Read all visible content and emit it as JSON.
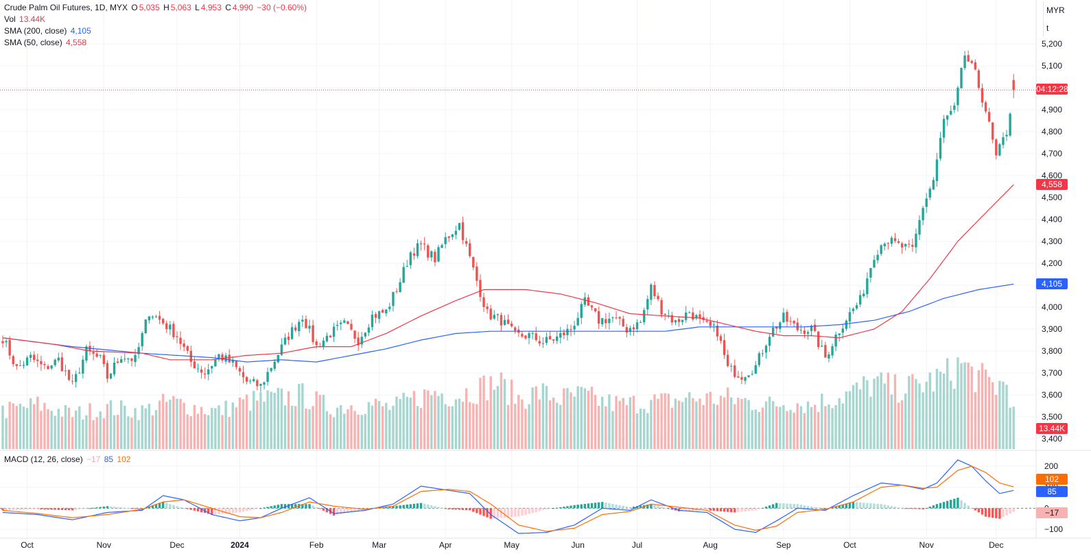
{
  "header": {
    "symbol": "Crude Palm Oil Futures, 1D, MYX",
    "open_label": "O",
    "open": "5,035",
    "high_label": "H",
    "high": "5,063",
    "low_label": "L",
    "low": "4,953",
    "close_label": "C",
    "close": "4,990",
    "change": "−30 (−0.60%)"
  },
  "volume_legend": {
    "label": "Vol",
    "value": "13.44K"
  },
  "sma200_legend": {
    "label": "SMA (200, close)",
    "value": "4,105"
  },
  "sma50_legend": {
    "label": "SMA (50, close)",
    "value": "4,558"
  },
  "macd_legend": {
    "label": "MACD (12, 26, close)",
    "hist": "−17",
    "macd": "85",
    "signal": "102"
  },
  "currency": {
    "code": "MYR",
    "unit": "t"
  },
  "price_tags": {
    "countdown": "04:12:28",
    "sma50": "4,558",
    "sma200": "4,105",
    "volume": "13.44K",
    "macd_signal": "102",
    "macd": "85",
    "hist": "−17"
  },
  "colors": {
    "up": "#26a69a",
    "down": "#ef5350",
    "vol_up": "#a7d6d1",
    "vol_down": "#f7b3b1",
    "sma200": "#2962ff",
    "sma50": "#f23645",
    "macd": "#2962ff",
    "signal": "#ff6d00",
    "grid": "#f0f3fa"
  },
  "chart_data": {
    "type": "candlestick",
    "y_ticks": [
      "5,200",
      "5,100",
      "5,000",
      "4,900",
      "4,800",
      "4,700",
      "4,600",
      "4,500",
      "4,400",
      "4,300",
      "4,200",
      "4,100",
      "4,000",
      "3,900",
      "3,800",
      "3,700",
      "3,600",
      "3,500",
      "3,400"
    ],
    "y_tick_values": [
      5200,
      5100,
      5000,
      4900,
      4800,
      4700,
      4600,
      4500,
      4400,
      4300,
      4200,
      4100,
      4000,
      3900,
      3800,
      3700,
      3600,
      3500,
      3400
    ],
    "x_labels": [
      "Oct",
      "Nov",
      "Dec",
      "2024",
      "Feb",
      "Mar",
      "Apr",
      "May",
      "Jun",
      "Jul",
      "Aug",
      "Sep",
      "Oct",
      "Nov",
      "Dec"
    ],
    "x_label_index": [
      7,
      29,
      50,
      68,
      90,
      108,
      127,
      146,
      165,
      182,
      203,
      224,
      243,
      265,
      285
    ],
    "macd_ticks": [
      "200",
      "100",
      "0",
      "−100"
    ],
    "macd_tick_values": [
      200,
      100,
      0,
      -100
    ],
    "price_keypoints": [
      [
        0,
        3860
      ],
      [
        4,
        3720
      ],
      [
        8,
        3770
      ],
      [
        12,
        3720
      ],
      [
        16,
        3760
      ],
      [
        20,
        3640
      ],
      [
        24,
        3800
      ],
      [
        28,
        3760
      ],
      [
        30,
        3680
      ],
      [
        34,
        3780
      ],
      [
        38,
        3760
      ],
      [
        42,
        3980
      ],
      [
        46,
        3930
      ],
      [
        50,
        3870
      ],
      [
        54,
        3750
      ],
      [
        58,
        3700
      ],
      [
        62,
        3780
      ],
      [
        66,
        3740
      ],
      [
        70,
        3660
      ],
      [
        74,
        3640
      ],
      [
        78,
        3760
      ],
      [
        82,
        3870
      ],
      [
        86,
        3960
      ],
      [
        90,
        3820
      ],
      [
        94,
        3880
      ],
      [
        98,
        3920
      ],
      [
        102,
        3850
      ],
      [
        106,
        3960
      ],
      [
        110,
        3980
      ],
      [
        114,
        4120
      ],
      [
        117,
        4250
      ],
      [
        120,
        4280
      ],
      [
        124,
        4220
      ],
      [
        127,
        4310
      ],
      [
        131,
        4380
      ],
      [
        135,
        4170
      ],
      [
        139,
        3970
      ],
      [
        143,
        3940
      ],
      [
        147,
        3870
      ],
      [
        151,
        3870
      ],
      [
        155,
        3840
      ],
      [
        159,
        3860
      ],
      [
        163,
        3900
      ],
      [
        167,
        4020
      ],
      [
        171,
        3940
      ],
      [
        175,
        3950
      ],
      [
        179,
        3900
      ],
      [
        183,
        3930
      ],
      [
        186,
        4090
      ],
      [
        189,
        3990
      ],
      [
        193,
        3930
      ],
      [
        197,
        3980
      ],
      [
        201,
        3920
      ],
      [
        205,
        3890
      ],
      [
        208,
        3720
      ],
      [
        212,
        3690
      ],
      [
        216,
        3730
      ],
      [
        220,
        3880
      ],
      [
        224,
        3950
      ],
      [
        228,
        3900
      ],
      [
        232,
        3900
      ],
      [
        236,
        3770
      ],
      [
        239,
        3870
      ],
      [
        242,
        3950
      ],
      [
        246,
        4030
      ],
      [
        250,
        4240
      ],
      [
        253,
        4310
      ],
      [
        257,
        4280
      ],
      [
        261,
        4260
      ],
      [
        264,
        4460
      ],
      [
        267,
        4580
      ],
      [
        270,
        4850
      ],
      [
        273,
        4900
      ],
      [
        276,
        5150
      ],
      [
        279,
        5060
      ],
      [
        282,
        4900
      ],
      [
        285,
        4680
      ],
      [
        288,
        4800
      ],
      [
        290,
        4990
      ]
    ],
    "sma50_keypoints": [
      [
        0,
        3860
      ],
      [
        15,
        3830
      ],
      [
        25,
        3800
      ],
      [
        40,
        3790
      ],
      [
        48,
        3760
      ],
      [
        60,
        3760
      ],
      [
        70,
        3780
      ],
      [
        80,
        3790
      ],
      [
        90,
        3820
      ],
      [
        100,
        3820
      ],
      [
        110,
        3880
      ],
      [
        120,
        3960
      ],
      [
        130,
        4030
      ],
      [
        138,
        4080
      ],
      [
        150,
        4080
      ],
      [
        160,
        4060
      ],
      [
        170,
        4020
      ],
      [
        180,
        3970
      ],
      [
        190,
        3960
      ],
      [
        200,
        3950
      ],
      [
        208,
        3920
      ],
      [
        216,
        3890
      ],
      [
        224,
        3870
      ],
      [
        232,
        3870
      ],
      [
        240,
        3860
      ],
      [
        250,
        3900
      ],
      [
        258,
        3980
      ],
      [
        266,
        4130
      ],
      [
        274,
        4300
      ],
      [
        282,
        4430
      ],
      [
        290,
        4558
      ]
    ],
    "sma200_keypoints": [
      [
        0,
        3860
      ],
      [
        20,
        3820
      ],
      [
        40,
        3790
      ],
      [
        60,
        3770
      ],
      [
        70,
        3750
      ],
      [
        80,
        3760
      ],
      [
        90,
        3750
      ],
      [
        100,
        3780
      ],
      [
        110,
        3810
      ],
      [
        120,
        3850
      ],
      [
        130,
        3880
      ],
      [
        140,
        3890
      ],
      [
        150,
        3890
      ],
      [
        160,
        3890
      ],
      [
        170,
        3890
      ],
      [
        180,
        3890
      ],
      [
        190,
        3890
      ],
      [
        200,
        3910
      ],
      [
        210,
        3910
      ],
      [
        220,
        3910
      ],
      [
        230,
        3910
      ],
      [
        240,
        3920
      ],
      [
        250,
        3940
      ],
      [
        260,
        3980
      ],
      [
        270,
        4040
      ],
      [
        280,
        4080
      ],
      [
        290,
        4105
      ]
    ],
    "macd_keypoints": [
      [
        0,
        -20
      ],
      [
        10,
        -30
      ],
      [
        20,
        -55
      ],
      [
        30,
        -20
      ],
      [
        40,
        -10
      ],
      [
        46,
        60
      ],
      [
        52,
        40
      ],
      [
        60,
        -30
      ],
      [
        68,
        -60
      ],
      [
        74,
        -45
      ],
      [
        80,
        0
      ],
      [
        88,
        50
      ],
      [
        95,
        -25
      ],
      [
        104,
        -10
      ],
      [
        112,
        20
      ],
      [
        120,
        105
      ],
      [
        128,
        85
      ],
      [
        134,
        70
      ],
      [
        140,
        -30
      ],
      [
        148,
        -120
      ],
      [
        156,
        -115
      ],
      [
        164,
        -80
      ],
      [
        172,
        0
      ],
      [
        180,
        -10
      ],
      [
        186,
        40
      ],
      [
        194,
        -10
      ],
      [
        202,
        -20
      ],
      [
        210,
        -100
      ],
      [
        216,
        -115
      ],
      [
        222,
        -60
      ],
      [
        228,
        0
      ],
      [
        236,
        -10
      ],
      [
        244,
        60
      ],
      [
        252,
        120
      ],
      [
        258,
        110
      ],
      [
        264,
        90
      ],
      [
        268,
        120
      ],
      [
        274,
        230
      ],
      [
        278,
        200
      ],
      [
        282,
        130
      ],
      [
        286,
        70
      ],
      [
        290,
        85
      ]
    ],
    "signal_keypoints": [
      [
        0,
        -10
      ],
      [
        10,
        -25
      ],
      [
        20,
        -45
      ],
      [
        30,
        -30
      ],
      [
        40,
        -5
      ],
      [
        46,
        30
      ],
      [
        52,
        40
      ],
      [
        60,
        0
      ],
      [
        68,
        -40
      ],
      [
        74,
        -45
      ],
      [
        80,
        -20
      ],
      [
        88,
        30
      ],
      [
        95,
        10
      ],
      [
        104,
        -5
      ],
      [
        112,
        10
      ],
      [
        120,
        80
      ],
      [
        128,
        90
      ],
      [
        134,
        80
      ],
      [
        140,
        20
      ],
      [
        148,
        -80
      ],
      [
        156,
        -110
      ],
      [
        164,
        -95
      ],
      [
        172,
        -30
      ],
      [
        180,
        -15
      ],
      [
        186,
        20
      ],
      [
        194,
        5
      ],
      [
        202,
        -10
      ],
      [
        210,
        -80
      ],
      [
        216,
        -105
      ],
      [
        222,
        -85
      ],
      [
        228,
        -20
      ],
      [
        236,
        -5
      ],
      [
        244,
        30
      ],
      [
        252,
        100
      ],
      [
        258,
        110
      ],
      [
        264,
        95
      ],
      [
        268,
        100
      ],
      [
        274,
        180
      ],
      [
        278,
        200
      ],
      [
        282,
        170
      ],
      [
        286,
        120
      ],
      [
        290,
        102
      ]
    ],
    "volume_keypoints": [
      [
        0,
        12
      ],
      [
        10,
        14
      ],
      [
        20,
        11
      ],
      [
        30,
        13
      ],
      [
        40,
        12
      ],
      [
        48,
        15
      ],
      [
        56,
        13
      ],
      [
        62,
        12
      ],
      [
        70,
        15
      ],
      [
        78,
        16
      ],
      [
        86,
        17
      ],
      [
        94,
        13
      ],
      [
        100,
        14
      ],
      [
        106,
        14
      ],
      [
        112,
        13
      ],
      [
        118,
        16
      ],
      [
        124,
        18
      ],
      [
        130,
        17
      ],
      [
        136,
        19
      ],
      [
        142,
        21
      ],
      [
        148,
        16
      ],
      [
        154,
        18
      ],
      [
        160,
        16
      ],
      [
        166,
        17
      ],
      [
        172,
        15
      ],
      [
        178,
        14
      ],
      [
        184,
        15
      ],
      [
        190,
        15
      ],
      [
        196,
        16
      ],
      [
        202,
        16
      ],
      [
        208,
        16
      ],
      [
        214,
        15
      ],
      [
        220,
        14
      ],
      [
        226,
        15
      ],
      [
        232,
        14
      ],
      [
        238,
        16
      ],
      [
        244,
        18
      ],
      [
        250,
        21
      ],
      [
        256,
        19
      ],
      [
        262,
        20
      ],
      [
        268,
        22
      ],
      [
        272,
        24
      ],
      [
        275,
        27
      ],
      [
        278,
        24
      ],
      [
        281,
        22
      ],
      [
        285,
        20
      ],
      [
        288,
        21
      ],
      [
        290,
        13.44
      ]
    ]
  }
}
